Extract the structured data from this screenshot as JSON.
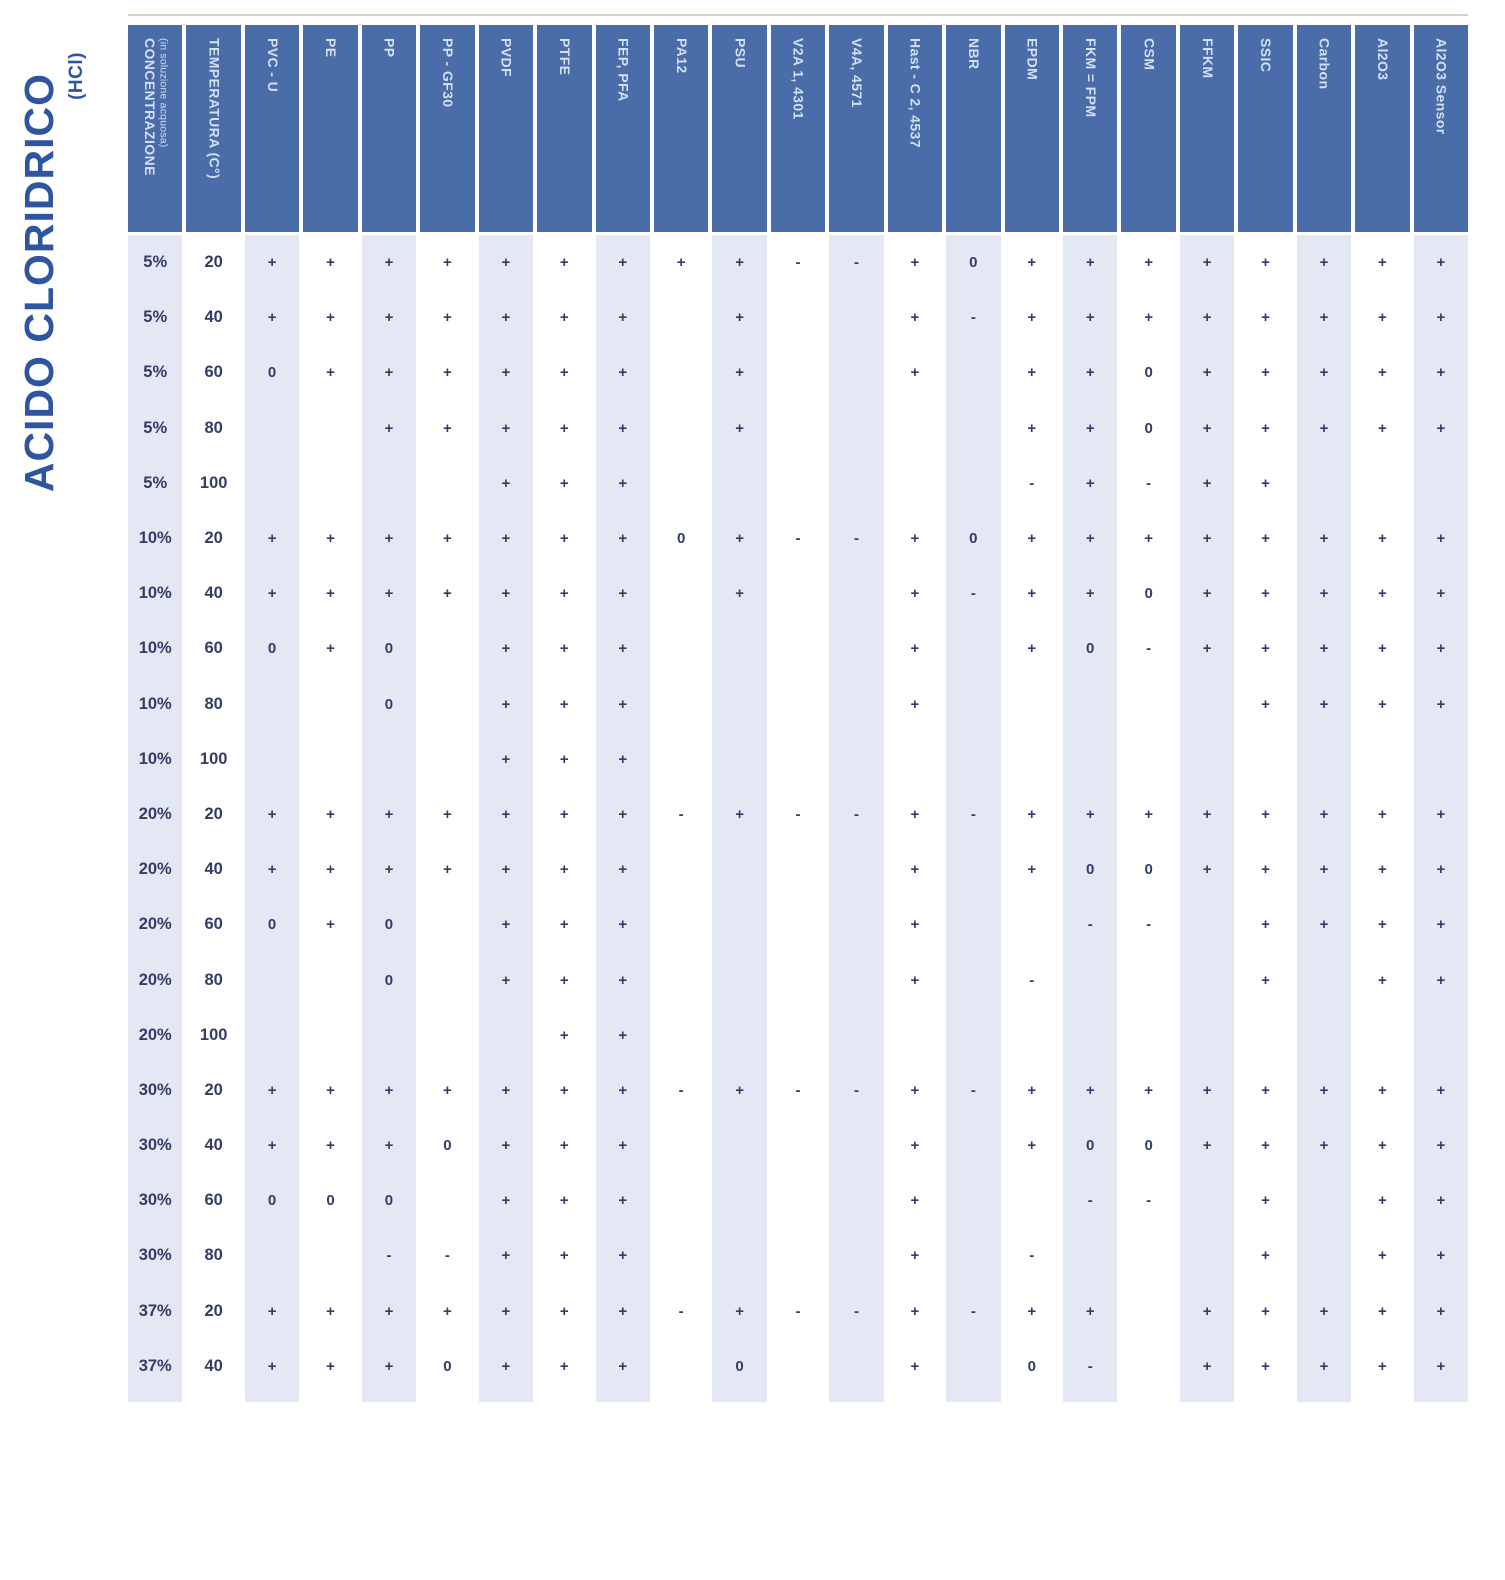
{
  "chart_data": {
    "type": "table",
    "title": "ACIDO CLORIDRICO",
    "subtitle": "(HCl)",
    "row_header_columns": [
      {
        "label": "CONCENTRAZIONE",
        "sublabel": "(in soluzione acquosa)"
      },
      {
        "label": "TEMPERATURA (C°)"
      }
    ],
    "material_columns": [
      "PVC - U",
      "PE",
      "PP",
      "PP - GF30",
      "PVDF",
      "PTFE",
      "FEP, PFA",
      "PA12",
      "PSU",
      "V2A 1, 4301",
      "V4A, 4571",
      "Hast - C 2, 4537",
      "NBR",
      "EPDM",
      "FKM = FPM",
      "CSM",
      "FFKM",
      "SSIC",
      "Carbon",
      "Al2O3",
      "Al2O3 Sensor"
    ],
    "rows": [
      {
        "concentration": "5%",
        "temperature": "20",
        "values": [
          "+",
          "+",
          "+",
          "+",
          "+",
          "+",
          "+",
          "+",
          "+",
          "-",
          "-",
          "+",
          "0",
          "+",
          "+",
          "+",
          "+",
          "+",
          "+",
          "+",
          "+"
        ]
      },
      {
        "concentration": "5%",
        "temperature": "40",
        "values": [
          "+",
          "+",
          "+",
          "+",
          "+",
          "+",
          "+",
          "",
          "+",
          "",
          "",
          "+",
          "-",
          "+",
          "+",
          "+",
          "+",
          "+",
          "+",
          "+",
          "+"
        ]
      },
      {
        "concentration": "5%",
        "temperature": "60",
        "values": [
          "0",
          "+",
          "+",
          "+",
          "+",
          "+",
          "+",
          "",
          "+",
          "",
          "",
          "+",
          "",
          "+",
          "+",
          "0",
          "+",
          "+",
          "+",
          "+",
          "+"
        ]
      },
      {
        "concentration": "5%",
        "temperature": "80",
        "values": [
          "",
          "",
          "+",
          "+",
          "+",
          "+",
          "+",
          "",
          "+",
          "",
          "",
          "",
          "",
          "+",
          "+",
          "0",
          "+",
          "+",
          "+",
          "+",
          "+"
        ]
      },
      {
        "concentration": "5%",
        "temperature": "100",
        "values": [
          "",
          "",
          "",
          "",
          "+",
          "+",
          "+",
          "",
          "",
          "",
          "",
          "",
          "",
          "-",
          "+",
          "-",
          "+",
          "+",
          "",
          "",
          ""
        ]
      },
      {
        "concentration": "10%",
        "temperature": "20",
        "values": [
          "+",
          "+",
          "+",
          "+",
          "+",
          "+",
          "+",
          "0",
          "+",
          "-",
          "-",
          "+",
          "0",
          "+",
          "+",
          "+",
          "+",
          "+",
          "+",
          "+",
          "+"
        ]
      },
      {
        "concentration": "10%",
        "temperature": "40",
        "values": [
          "+",
          "+",
          "+",
          "+",
          "+",
          "+",
          "+",
          "",
          "+",
          "",
          "",
          "+",
          "-",
          "+",
          "+",
          "0",
          "+",
          "+",
          "+",
          "+",
          "+"
        ]
      },
      {
        "concentration": "10%",
        "temperature": "60",
        "values": [
          "0",
          "+",
          "0",
          "",
          "+",
          "+",
          "+",
          "",
          "",
          "",
          "",
          "+",
          "",
          "+",
          "0",
          "-",
          "+",
          "+",
          "+",
          "+",
          "+"
        ]
      },
      {
        "concentration": "10%",
        "temperature": "80",
        "values": [
          "",
          "",
          "0",
          "",
          "+",
          "+",
          "+",
          "",
          "",
          "",
          "",
          "+",
          "",
          "",
          "",
          "",
          "",
          "+",
          "+",
          "+",
          "+"
        ]
      },
      {
        "concentration": "10%",
        "temperature": "100",
        "values": [
          "",
          "",
          "",
          "",
          "+",
          "+",
          "+",
          "",
          "",
          "",
          "",
          "",
          "",
          "",
          "",
          "",
          "",
          "",
          "",
          "",
          ""
        ]
      },
      {
        "concentration": "20%",
        "temperature": "20",
        "values": [
          "+",
          "+",
          "+",
          "+",
          "+",
          "+",
          "+",
          "-",
          "+",
          "-",
          "-",
          "+",
          "-",
          "+",
          "+",
          "+",
          "+",
          "+",
          "+",
          "+",
          "+"
        ]
      },
      {
        "concentration": "20%",
        "temperature": "40",
        "values": [
          "+",
          "+",
          "+",
          "+",
          "+",
          "+",
          "+",
          "",
          "",
          "",
          "",
          "+",
          "",
          "+",
          "0",
          "0",
          "+",
          "+",
          "+",
          "+",
          "+"
        ]
      },
      {
        "concentration": "20%",
        "temperature": "60",
        "values": [
          "0",
          "+",
          "0",
          "",
          "+",
          "+",
          "+",
          "",
          "",
          "",
          "",
          "+",
          "",
          "",
          "-",
          "-",
          "",
          "+",
          "+",
          "+",
          "+"
        ]
      },
      {
        "concentration": "20%",
        "temperature": "80",
        "values": [
          "",
          "",
          "0",
          "",
          "+",
          "+",
          "+",
          "",
          "",
          "",
          "",
          "+",
          "",
          "-",
          "",
          "",
          "",
          "+",
          "",
          "+",
          "+"
        ]
      },
      {
        "concentration": "20%",
        "temperature": "100",
        "values": [
          "",
          "",
          "",
          "",
          "",
          "+",
          "+",
          "",
          "",
          "",
          "",
          "",
          "",
          "",
          "",
          "",
          "",
          "",
          "",
          "",
          ""
        ]
      },
      {
        "concentration": "30%",
        "temperature": "20",
        "values": [
          "+",
          "+",
          "+",
          "+",
          "+",
          "+",
          "+",
          "-",
          "+",
          "-",
          "-",
          "+",
          "-",
          "+",
          "+",
          "+",
          "+",
          "+",
          "+",
          "+",
          "+"
        ]
      },
      {
        "concentration": "30%",
        "temperature": "40",
        "values": [
          "+",
          "+",
          "+",
          "0",
          "+",
          "+",
          "+",
          "",
          "",
          "",
          "",
          "+",
          "",
          "+",
          "0",
          "0",
          "+",
          "+",
          "+",
          "+",
          "+"
        ]
      },
      {
        "concentration": "30%",
        "temperature": "60",
        "values": [
          "0",
          "0",
          "0",
          "",
          "+",
          "+",
          "+",
          "",
          "",
          "",
          "",
          "+",
          "",
          "",
          "-",
          "-",
          "",
          "+",
          "",
          "+",
          "+"
        ]
      },
      {
        "concentration": "30%",
        "temperature": "80",
        "values": [
          "",
          "",
          "-",
          "-",
          "+",
          "+",
          "+",
          "",
          "",
          "",
          "",
          "+",
          "",
          "-",
          "",
          "",
          "",
          "+",
          "",
          "+",
          "+"
        ]
      },
      {
        "concentration": "37%",
        "temperature": "20",
        "values": [
          "+",
          "+",
          "+",
          "+",
          "+",
          "+",
          "+",
          "-",
          "+",
          "-",
          "-",
          "+",
          "-",
          "+",
          "+",
          "",
          "+",
          "+",
          "+",
          "+",
          "+"
        ]
      },
      {
        "concentration": "37%",
        "temperature": "40",
        "values": [
          "+",
          "+",
          "+",
          "0",
          "+",
          "+",
          "+",
          "",
          "0",
          "",
          "",
          "+",
          "",
          "0",
          "-",
          "",
          "+",
          "+",
          "+",
          "+",
          "+"
        ]
      }
    ]
  },
  "colors": {
    "title": "#2f55a0",
    "header_bg": "#4a6ca8",
    "header_text": "#d3dff2",
    "stripe": "#e3e8f4",
    "symbol": "#333c66",
    "topline": "#d8d2c2"
  }
}
